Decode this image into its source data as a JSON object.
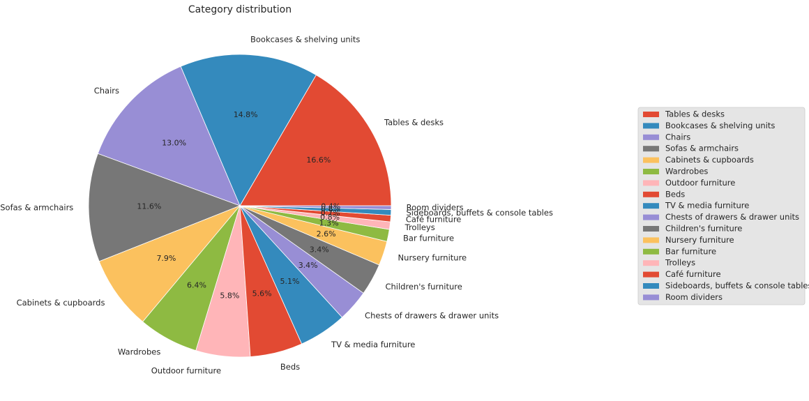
{
  "chart_data": {
    "type": "pie",
    "title": "Category distribution",
    "categories": [
      "Tables & desks",
      "Bookcases & shelving units",
      "Chairs",
      "Sofas & armchairs",
      "Cabinets & cupboards",
      "Wardrobes",
      "Outdoor furniture",
      "Beds",
      "TV & media furniture",
      "Chests of drawers & drawer units",
      "Children's furniture",
      "Nursery furniture",
      "Bar furniture",
      "Trolleys",
      "Café furniture",
      "Sideboards, buffets & console tables",
      "Room dividers"
    ],
    "values": [
      16.6,
      14.8,
      13.0,
      11.6,
      7.9,
      6.4,
      5.8,
      5.6,
      5.1,
      3.4,
      3.4,
      2.6,
      1.3,
      0.8,
      0.7,
      0.6,
      0.4
    ],
    "pct_labels": [
      "16.6%",
      "14.8%",
      "13.0%",
      "11.6%",
      "7.9%",
      "6.4%",
      "5.8%",
      "5.6%",
      "5.1%",
      "3.4%",
      "3.4%",
      "2.6%",
      "1.3%",
      "0.8%",
      "0.7%",
      "0.6%",
      "0.4%"
    ],
    "colors": [
      "#E24A33",
      "#348ABD",
      "#988ED5",
      "#777777",
      "#FBC15E",
      "#8EBA42",
      "#FFB5B8",
      "#E24A33",
      "#348ABD",
      "#988ED5",
      "#777777",
      "#FBC15E",
      "#8EBA42",
      "#FFB5B8",
      "#E24A33",
      "#348ABD",
      "#988ED5"
    ],
    "start_angle_deg": 0,
    "direction": "counterclockwise",
    "legend_position": "right",
    "legend_background": "#E5E5E5"
  }
}
